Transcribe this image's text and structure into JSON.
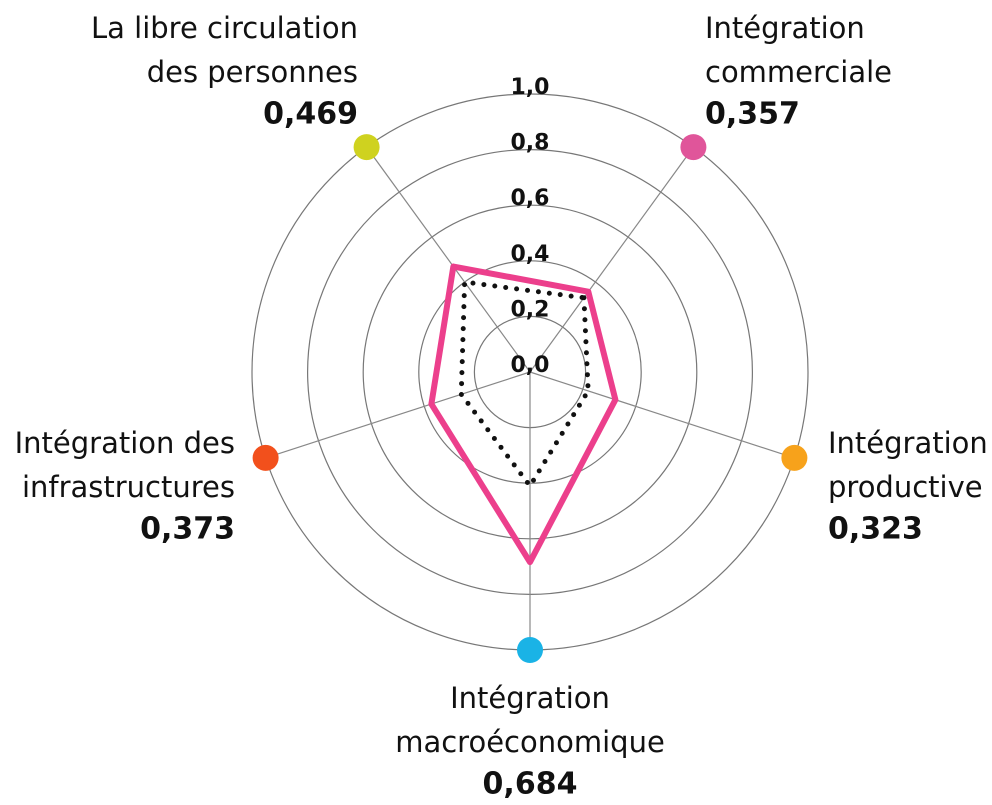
{
  "chart_data": {
    "type": "radar",
    "categories": [
      [
        "Intégration",
        "commerciale"
      ],
      [
        "Intégration",
        "productive"
      ],
      [
        "Intégration",
        "macroéconomique"
      ],
      [
        "Intégration des",
        "infrastructures"
      ],
      [
        "La libre circulation",
        "des personnes"
      ]
    ],
    "axis_colors": [
      "#e0559a",
      "#f7a21b",
      "#1ab3e6",
      "#f2501c",
      "#cfd21f"
    ],
    "series": [
      {
        "color": "#ec3f8c",
        "style": "solid",
        "values": [
          0.357,
          0.323,
          0.684,
          0.373,
          0.469
        ],
        "value_labels": [
          "0,357",
          "0,323",
          "0,684",
          "0,373",
          "0,469"
        ]
      },
      {
        "color": "#111111",
        "style": "dotted",
        "values": [
          0.33,
          0.22,
          0.41,
          0.26,
          0.4
        ]
      }
    ],
    "rlim": [
      0,
      1
    ],
    "rticks": [
      {
        "value": 0,
        "label": "0,0"
      },
      {
        "value": 0.2,
        "label": "0,2"
      },
      {
        "value": 0.4,
        "label": "0,4"
      },
      {
        "value": 0.6,
        "label": "0,6"
      },
      {
        "value": 0.8,
        "label": "0,8"
      },
      {
        "value": 1,
        "label": "1,0"
      }
    ]
  }
}
